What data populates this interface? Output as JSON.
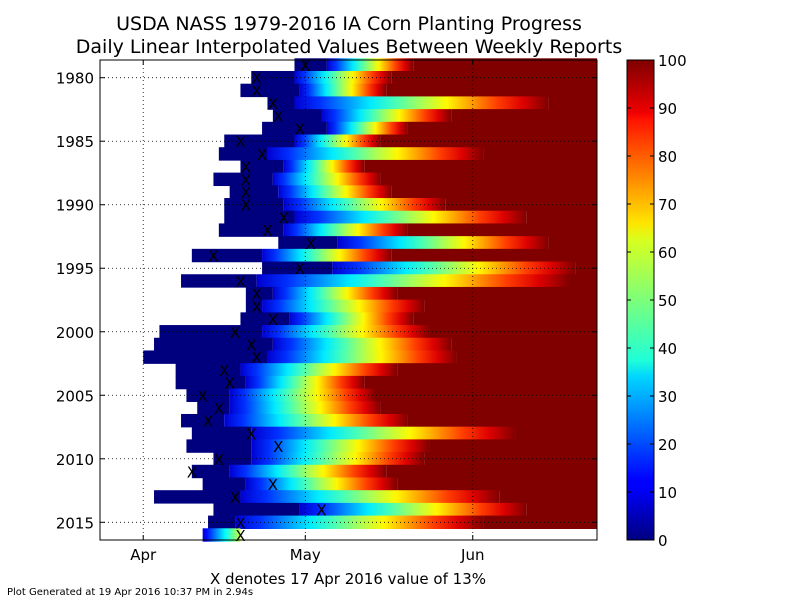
{
  "chart_data": {
    "type": "heatmap",
    "title": "USDA NASS 1979-2016 IA Corn Planting Progress",
    "subtitle": "Daily Linear Interpolated Values Between Weekly Reports",
    "xlabel": "X denotes 17 Apr 2016 value of 13%",
    "footer": "Plot Generated at 19 Apr 2016 10:37 PM in 2.94s",
    "x_ticks": [
      "Apr",
      "May",
      "Jun"
    ],
    "y_ticks": [
      "1980",
      "1985",
      "1990",
      "1995",
      "2000",
      "2005",
      "2010",
      "2015"
    ],
    "colorbar_ticks": [
      "0",
      "10",
      "20",
      "30",
      "40",
      "50",
      "60",
      "70",
      "80",
      "90",
      "100"
    ],
    "colorbar_range": [
      0,
      100
    ],
    "colormap": "jet",
    "marker": "X",
    "x_range_day_of_year": [
      84,
      176
    ],
    "y_range": [
      1979,
      2016
    ],
    "grid": "dotted",
    "rows": [
      {
        "year": 1979,
        "start": 120,
        "end": 126,
        "full": 142,
        "x_doy": 122
      },
      {
        "year": 1980,
        "start": 112,
        "end": 120,
        "full": 138,
        "x_doy": 113
      },
      {
        "year": 1981,
        "start": 110,
        "end": 121,
        "full": 137,
        "x_doy": 113
      },
      {
        "year": 1982,
        "start": 115,
        "end": 120,
        "full": 167,
        "x_doy": 116
      },
      {
        "year": 1983,
        "start": 116,
        "end": 125,
        "full": 149,
        "x_doy": 117
      },
      {
        "year": 1984,
        "start": 114,
        "end": 126,
        "full": 141,
        "x_doy": 121
      },
      {
        "year": 1985,
        "start": 107,
        "end": 120,
        "full": 136,
        "x_doy": 110
      },
      {
        "year": 1986,
        "start": 106,
        "end": 115,
        "full": 155,
        "x_doy": 114
      },
      {
        "year": 1987,
        "start": 110,
        "end": 118,
        "full": 133,
        "x_doy": 111
      },
      {
        "year": 1988,
        "start": 105,
        "end": 116,
        "full": 136,
        "x_doy": 111
      },
      {
        "year": 1989,
        "start": 108,
        "end": 117,
        "full": 138,
        "x_doy": 111
      },
      {
        "year": 1990,
        "start": 107,
        "end": 118,
        "full": 148,
        "x_doy": 111
      },
      {
        "year": 1991,
        "start": 107,
        "end": 120,
        "full": 163,
        "x_doy": 118
      },
      {
        "year": 1992,
        "start": 106,
        "end": 118,
        "full": 141,
        "x_doy": 115
      },
      {
        "year": 1993,
        "start": 117,
        "end": 128,
        "full": 167,
        "x_doy": 123
      },
      {
        "year": 1994,
        "start": 101,
        "end": 114,
        "full": 138,
        "x_doy": 105
      },
      {
        "year": 1995,
        "start": 114,
        "end": 127,
        "full": 172,
        "x_doy": 121
      },
      {
        "year": 1996,
        "start": 99,
        "end": 113,
        "full": 171,
        "x_doy": 110
      },
      {
        "year": 1997,
        "start": 111,
        "end": 116,
        "full": 139,
        "x_doy": 113
      },
      {
        "year": 1998,
        "start": 111,
        "end": 114,
        "full": 144,
        "x_doy": 113
      },
      {
        "year": 1999,
        "start": 110,
        "end": 119,
        "full": 142,
        "x_doy": 116
      },
      {
        "year": 2000,
        "start": 95,
        "end": 114,
        "full": 145,
        "x_doy": 109
      },
      {
        "year": 2001,
        "start": 94,
        "end": 116,
        "full": 149,
        "x_doy": 112
      },
      {
        "year": 2002,
        "start": 92,
        "end": 115,
        "full": 150,
        "x_doy": 113
      },
      {
        "year": 2003,
        "start": 98,
        "end": 110,
        "full": 139,
        "x_doy": 107
      },
      {
        "year": 2004,
        "start": 98,
        "end": 111,
        "full": 133,
        "x_doy": 108
      },
      {
        "year": 2005,
        "start": 100,
        "end": 108,
        "full": 135,
        "x_doy": 103
      },
      {
        "year": 2006,
        "start": 102,
        "end": 108,
        "full": 136,
        "x_doy": 106
      },
      {
        "year": 2007,
        "start": 99,
        "end": 107,
        "full": 141,
        "x_doy": 104
      },
      {
        "year": 2008,
        "start": 101,
        "end": 112,
        "full": 161,
        "x_doy": 112
      },
      {
        "year": 2009,
        "start": 100,
        "end": 112,
        "full": 145,
        "x_doy": 117
      },
      {
        "year": 2010,
        "start": 105,
        "end": 112,
        "full": 144,
        "x_doy": 106
      },
      {
        "year": 2011,
        "start": 101,
        "end": 108,
        "full": 137,
        "x_doy": 101
      },
      {
        "year": 2012,
        "start": 103,
        "end": 111,
        "full": 139,
        "x_doy": 116
      },
      {
        "year": 2013,
        "start": 94,
        "end": 110,
        "full": 158,
        "x_doy": 109
      },
      {
        "year": 2014,
        "start": 105,
        "end": 121,
        "full": 163,
        "x_doy": 125
      },
      {
        "year": 2015,
        "start": 104,
        "end": 109,
        "full": 155,
        "x_doy": 110
      },
      {
        "year": 2016,
        "start": 103,
        "end": 103,
        "full": 116,
        "x_doy": 110,
        "last_doy": 110
      }
    ]
  }
}
